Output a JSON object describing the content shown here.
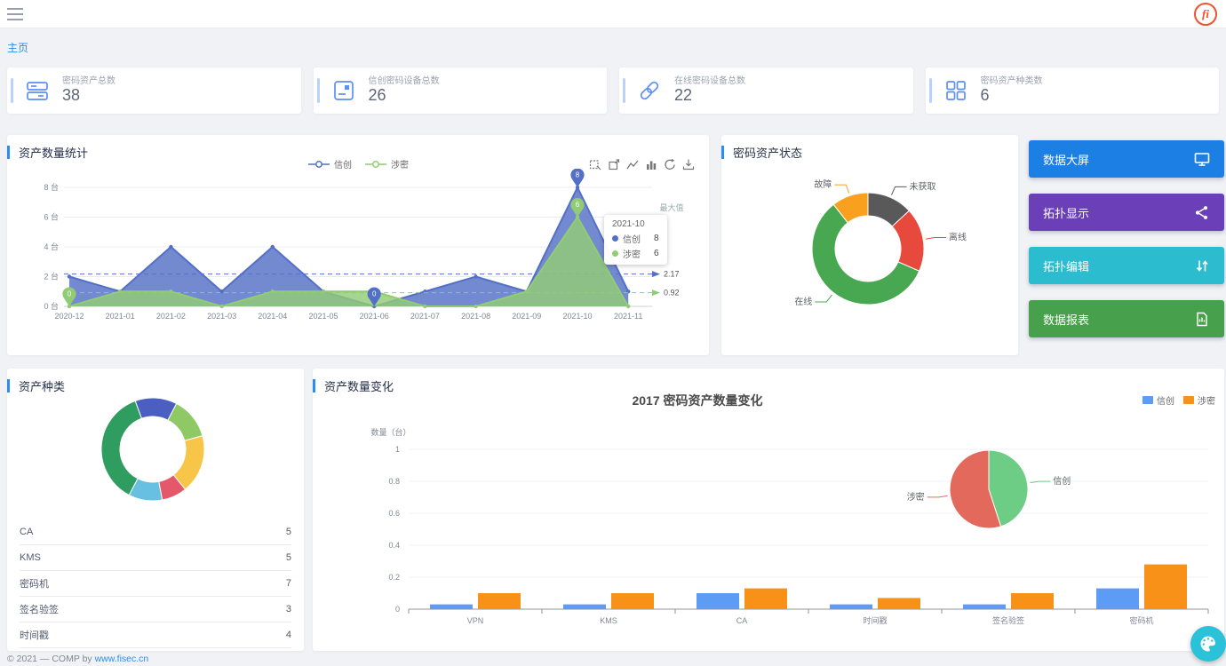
{
  "theme": {
    "accent": "#2d8cf0",
    "stat_icon": "#5b8ff9",
    "fab": "#29c2d8",
    "logo": "#f0512e"
  },
  "navbar": {
    "logo_text": "fi"
  },
  "breadcrumb": {
    "current": "主页"
  },
  "stat_cards": [
    {
      "icon": "assets-total-icon",
      "label": "密码资产总数",
      "value": "38"
    },
    {
      "icon": "xinchuang-devices-icon",
      "label": "信创密码设备总数",
      "value": "26"
    },
    {
      "icon": "online-devices-icon",
      "label": "在线密码设备总数",
      "value": "22"
    },
    {
      "icon": "asset-kinds-icon",
      "label": "密码资产种类数",
      "value": "6"
    }
  ],
  "panels": {
    "trend": {
      "title": "资产数量统计"
    },
    "status": {
      "title": "密码资产状态"
    },
    "types": {
      "title": "资产种类",
      "list": [
        {
          "name": "CA",
          "value": "5"
        },
        {
          "name": "KMS",
          "value": "5"
        },
        {
          "name": "密码机",
          "value": "7"
        },
        {
          "name": "签名验签",
          "value": "3"
        },
        {
          "name": "时间戳",
          "value": "4"
        }
      ]
    },
    "change": {
      "title": "资产数量变化",
      "chart_title": "2017 密码资产数量变化",
      "ylabel": "数量（台）",
      "legend": [
        {
          "name": "信创",
          "color": "#5d9cf5"
        },
        {
          "name": "涉密",
          "color": "#f79117"
        }
      ]
    }
  },
  "trend_legend": [
    {
      "name": "信创",
      "color": "#5470c6"
    },
    {
      "name": "涉密",
      "color": "#91cc75"
    }
  ],
  "tooltip": {
    "title": "2021-10",
    "rows": [
      {
        "name": "信创",
        "value": "8",
        "color": "#5470c6"
      },
      {
        "name": "涉密",
        "value": "6",
        "color": "#91cc75"
      }
    ]
  },
  "action_buttons": [
    {
      "label": "数据大屏",
      "color": "#1b7fe4",
      "icon": "monitor-icon"
    },
    {
      "label": "拓扑显示",
      "color": "#6a3fb8",
      "icon": "topology-icon"
    },
    {
      "label": "拓扑编辑",
      "color": "#2bbccf",
      "icon": "topology-edit-icon"
    },
    {
      "label": "数据报表",
      "color": "#47a04b",
      "icon": "report-icon"
    }
  ],
  "footer": {
    "text": "© 2021 — COMP by ",
    "link": "www.fisec.cn"
  },
  "chart_data": [
    {
      "id": "asset-count-trend",
      "type": "area",
      "x": [
        "2020-12",
        "2021-01",
        "2021-02",
        "2021-03",
        "2021-04",
        "2021-05",
        "2021-06",
        "2021-07",
        "2021-08",
        "2021-09",
        "2021-10",
        "2021-11"
      ],
      "series": [
        {
          "name": "信创",
          "color": "#5470c6",
          "values": [
            2,
            1,
            4,
            1,
            4,
            1,
            0,
            1,
            2,
            1,
            8,
            1
          ],
          "average": 2.17,
          "max": {
            "x": "2021-10",
            "value": 8
          },
          "min": {
            "x": "2021-06",
            "value": 0
          }
        },
        {
          "name": "涉密",
          "color": "#91cc75",
          "values": [
            0,
            1,
            1,
            0,
            1,
            1,
            1,
            0,
            0,
            1,
            6,
            0
          ],
          "average": 0.92,
          "max": {
            "x": "2021-10",
            "value": 6
          },
          "min": {
            "x": "2020-12",
            "value": 0
          }
        }
      ],
      "ylim": [
        0,
        8
      ],
      "yticks": [
        0,
        2,
        4,
        6,
        8
      ],
      "ytick_suffix": " 台",
      "grid": true,
      "legend_position": "top-center",
      "marker_label": "最大值",
      "tooltip": {
        "x": "2021-10",
        "rows": [
          {
            "name": "信创",
            "value": 8
          },
          {
            "name": "涉密",
            "value": 6
          }
        ]
      }
    },
    {
      "id": "asset-status",
      "type": "pie",
      "donut": true,
      "legend_position": "none",
      "slices": [
        {
          "name": "未获取",
          "value": 5,
          "color": "#595959"
        },
        {
          "name": "离线",
          "value": 7,
          "color": "#e8493d"
        },
        {
          "name": "在线",
          "value": 22,
          "color": "#48a852"
        },
        {
          "name": "故障",
          "value": 4,
          "color": "#f9a01e"
        }
      ]
    },
    {
      "id": "asset-types",
      "type": "pie",
      "donut": true,
      "labels_shown": false,
      "slices": [
        {
          "name": "CA",
          "value": 5,
          "color": "#4a5fc1"
        },
        {
          "name": "KMS",
          "value": 5,
          "color": "#8fc965"
        },
        {
          "name": "密码机",
          "value": 7,
          "color": "#f7c649"
        },
        {
          "name": "签名验签",
          "value": 3,
          "color": "#e4586a"
        },
        {
          "name": "时间戳",
          "value": 4,
          "color": "#67c0e0"
        },
        {
          "name": "VPN",
          "value": 14,
          "color": "#2f9d60"
        }
      ]
    },
    {
      "id": "asset-change-2017",
      "type": "bar",
      "title": "2017 密码资产数量变化",
      "categories": [
        "VPN",
        "KMS",
        "CA",
        "时间戳",
        "签名验签",
        "密码机"
      ],
      "series": [
        {
          "name": "信创",
          "color": "#5d9cf5",
          "values": [
            0.03,
            0.03,
            0.1,
            0.03,
            0.03,
            0.13
          ]
        },
        {
          "name": "涉密",
          "color": "#f79117",
          "values": [
            0.1,
            0.1,
            0.13,
            0.07,
            0.1,
            0.28
          ]
        }
      ],
      "ylabel": "数量（台）",
      "ylim": [
        0,
        1
      ],
      "yticks": [
        0,
        0.2,
        0.4,
        0.6,
        0.8,
        1
      ],
      "legend_position": "top-right",
      "inset_pie": {
        "slices": [
          {
            "name": "信创",
            "value": 45,
            "color": "#6ecd85"
          },
          {
            "name": "涉密",
            "value": 55,
            "color": "#e2695b"
          }
        ]
      }
    }
  ]
}
